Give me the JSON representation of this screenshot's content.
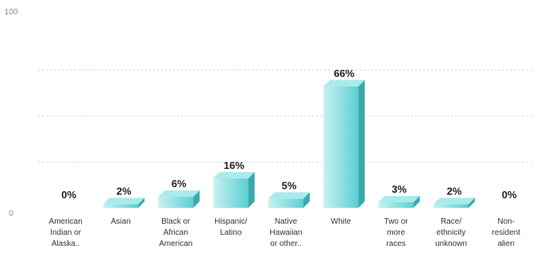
{
  "chart_data": {
    "type": "bar",
    "categories": [
      "American Indian or Alaska..",
      "Asian",
      "Black or African American",
      "Hispanic/ Latino",
      "Native Hawaiian or other..",
      "White",
      "Two or more races",
      "Race/ ethnicity unknown",
      "Non-resident alien"
    ],
    "category_lines": [
      [
        "American",
        "Indian or",
        "Alaska.."
      ],
      [
        "Asian"
      ],
      [
        "Black or",
        "African",
        "American"
      ],
      [
        "Hispanic/",
        "Latino"
      ],
      [
        "Native",
        "Hawaiian",
        "or other.."
      ],
      [
        "White"
      ],
      [
        "Two or",
        "more",
        "races"
      ],
      [
        "Race/",
        "ethnicity",
        "unknown"
      ],
      [
        "Non-",
        "resident",
        "alien"
      ]
    ],
    "values": [
      0,
      2,
      6,
      16,
      5,
      66,
      3,
      2,
      0
    ],
    "data_labels": [
      "0%",
      "2%",
      "6%",
      "16%",
      "5%",
      "66%",
      "3%",
      "2%",
      "0%"
    ],
    "ylim": [
      0,
      100
    ],
    "y_ticks": [
      "0",
      "100"
    ],
    "grid": true,
    "colors": {
      "front": "#5ccfd2",
      "front_light": "#c8f1f2",
      "top": "#a9eaec",
      "side": "#3aa9ad"
    }
  }
}
